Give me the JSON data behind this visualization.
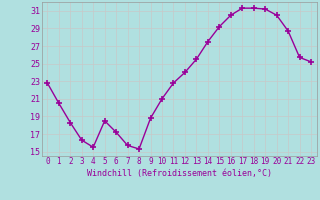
{
  "x": [
    0,
    1,
    2,
    3,
    4,
    5,
    6,
    7,
    8,
    9,
    10,
    11,
    12,
    13,
    14,
    15,
    16,
    17,
    18,
    19,
    20,
    21,
    22,
    23
  ],
  "y": [
    22.8,
    20.5,
    18.3,
    16.3,
    15.5,
    18.5,
    17.2,
    15.7,
    15.3,
    18.8,
    21.0,
    22.8,
    24.0,
    25.5,
    27.5,
    29.2,
    30.5,
    31.3,
    31.3,
    31.2,
    30.5,
    28.7,
    25.7,
    25.2
  ],
  "line_color": "#990099",
  "marker": "+",
  "marker_size": 4,
  "marker_linewidth": 1.2,
  "line_width": 1.0,
  "xlabel": "Windchill (Refroidissement éolien,°C)",
  "xlim_min": -0.5,
  "xlim_max": 23.5,
  "ylim_min": 14.5,
  "ylim_max": 32.0,
  "yticks": [
    15,
    17,
    19,
    21,
    23,
    25,
    27,
    29,
    31
  ],
  "xticks": [
    0,
    1,
    2,
    3,
    4,
    5,
    6,
    7,
    8,
    9,
    10,
    11,
    12,
    13,
    14,
    15,
    16,
    17,
    18,
    19,
    20,
    21,
    22,
    23
  ],
  "background_color": "#b0e0e0",
  "grid_color": "#c8c8c8",
  "line_label_color": "#990099",
  "xlabel_fontsize": 6.0,
  "tick_fontsize": 5.5,
  "ytick_fontsize": 6.0
}
